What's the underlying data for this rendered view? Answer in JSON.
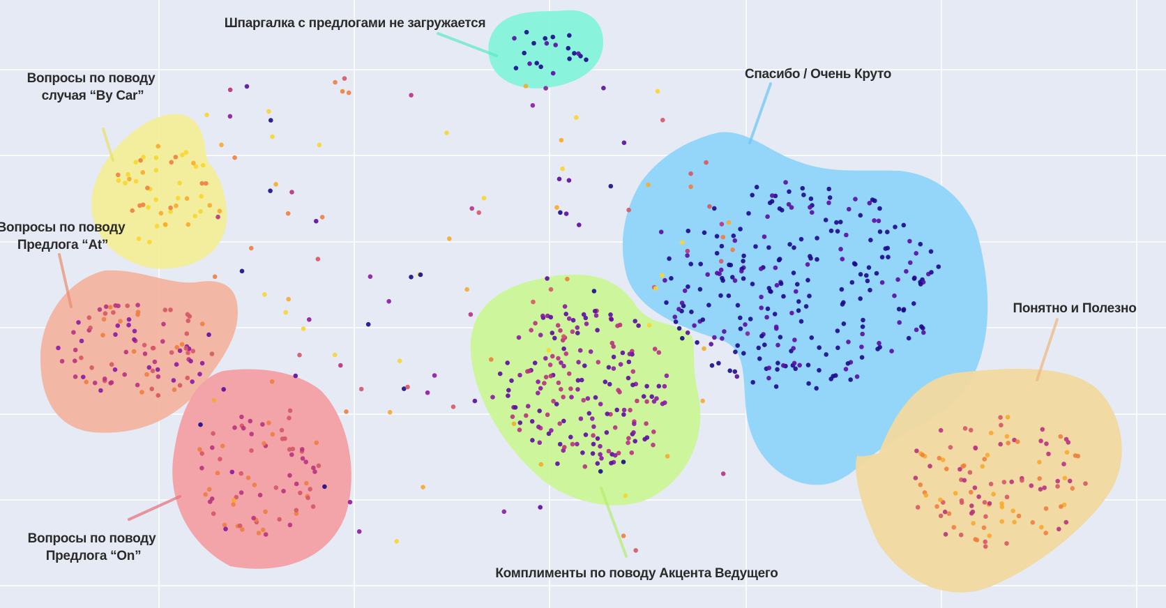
{
  "chart_data": {
    "type": "scatter",
    "title": "",
    "xlabel": "",
    "ylabel": "",
    "grid": true,
    "palette": [
      "#1b0a8a",
      "#5a0ca1",
      "#8b1aa3",
      "#b8327e",
      "#d65665",
      "#ee7e3f",
      "#f7aa2b",
      "#f8d62c"
    ],
    "point_count": 900,
    "clusters": [
      {
        "id": "by-car",
        "label_lines": [
          "Вопросы по поводу",
          "случая “By Car”"
        ],
        "color": "#f2ee98"
      },
      {
        "id": "at",
        "label_lines": [
          "Вопросы по поводу",
          "Предлога “At”"
        ],
        "color": "#f3b4a0"
      },
      {
        "id": "on",
        "label_lines": [
          "Вопросы по поводу",
          "Предлога “On”"
        ],
        "color": "#f2a0a4"
      },
      {
        "id": "cheatsheet",
        "label_lines": [
          "Шпаргалка с предлогами не загружается"
        ],
        "color": "#84f3da"
      },
      {
        "id": "thanks",
        "label_lines": [
          "Спасибо / Очень Круто"
        ],
        "color": "#8fd4fa"
      },
      {
        "id": "accent",
        "label_lines": [
          "Комплименты по поводу Акцента Ведущего"
        ],
        "color": "#cbf797"
      },
      {
        "id": "useful",
        "label_lines": [
          "Понятно и Полезно"
        ],
        "color": "#f1d99e"
      }
    ]
  }
}
